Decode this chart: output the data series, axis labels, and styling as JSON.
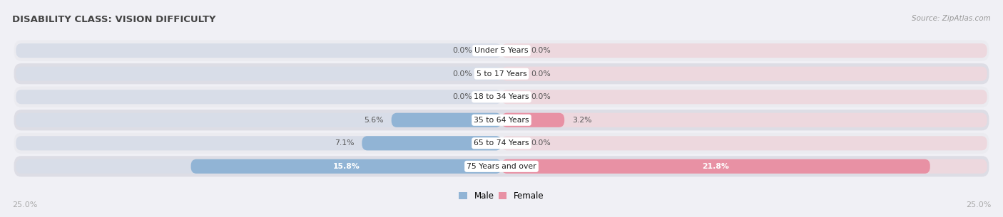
{
  "title": "DISABILITY CLASS: VISION DIFFICULTY",
  "source": "Source: ZipAtlas.com",
  "categories": [
    "Under 5 Years",
    "5 to 17 Years",
    "18 to 34 Years",
    "35 to 64 Years",
    "65 to 74 Years",
    "75 Years and over"
  ],
  "male_values": [
    0.0,
    0.0,
    0.0,
    5.6,
    7.1,
    15.8
  ],
  "female_values": [
    0.0,
    0.0,
    0.0,
    3.2,
    0.0,
    21.8
  ],
  "max_val": 25.0,
  "male_color": "#91b4d5",
  "female_color": "#e891a4",
  "bar_bg_male_color": "#d8dde8",
  "bar_bg_female_color": "#edd8de",
  "row_bg_colors": [
    "#ebebf0",
    "#dddde5"
  ],
  "label_bg_color": "#ffffff",
  "title_color": "#444444",
  "source_color": "#999999",
  "value_color_dark": "#555555",
  "value_color_white": "#ffffff",
  "axis_label_color": "#aaaaaa",
  "legend_male_color": "#91b4d5",
  "legend_female_color": "#e891a4",
  "figsize": [
    14.06,
    3.05
  ],
  "dpi": 100
}
